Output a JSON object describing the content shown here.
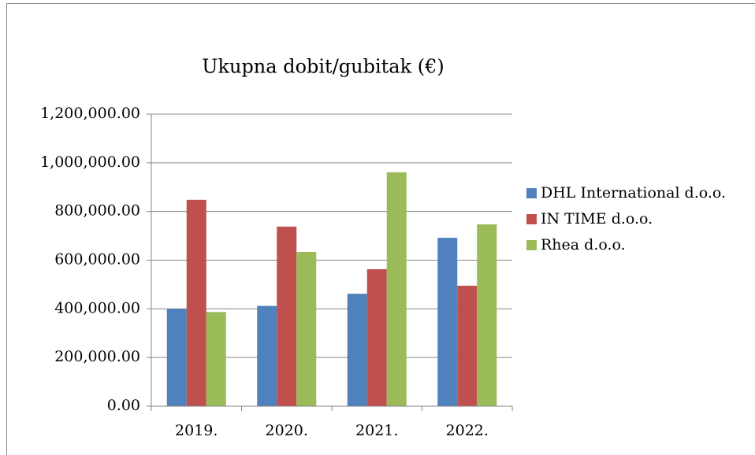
{
  "chart_data": {
    "type": "bar",
    "title": "Ukupna dobit/gubitak (€)",
    "categories": [
      "2019.",
      "2020.",
      "2021.",
      "2022."
    ],
    "series": [
      {
        "name": "DHL International d.o.o.",
        "color": "#4f81bd",
        "values": [
          400000,
          412000,
          462000,
          692000
        ]
      },
      {
        "name": "IN TIME d.o.o.",
        "color": "#c0504d",
        "values": [
          848000,
          738000,
          563000,
          495000
        ]
      },
      {
        "name": "Rhea d.o.o.",
        "color": "#9bbb59",
        "values": [
          387000,
          634000,
          961000,
          747000
        ]
      }
    ],
    "ylim": [
      0,
      1200000
    ],
    "yticks": [
      {
        "value": 0,
        "label": "0.00"
      },
      {
        "value": 200000,
        "label": "200,000.00"
      },
      {
        "value": 400000,
        "label": "400,000.00"
      },
      {
        "value": 600000,
        "label": "600,000.00"
      },
      {
        "value": 800000,
        "label": "800,000.00"
      },
      {
        "value": 1000000,
        "label": "1,000,000.00"
      },
      {
        "value": 1200000,
        "label": "1,200,000.00"
      }
    ],
    "grid": true,
    "legend": "right"
  }
}
